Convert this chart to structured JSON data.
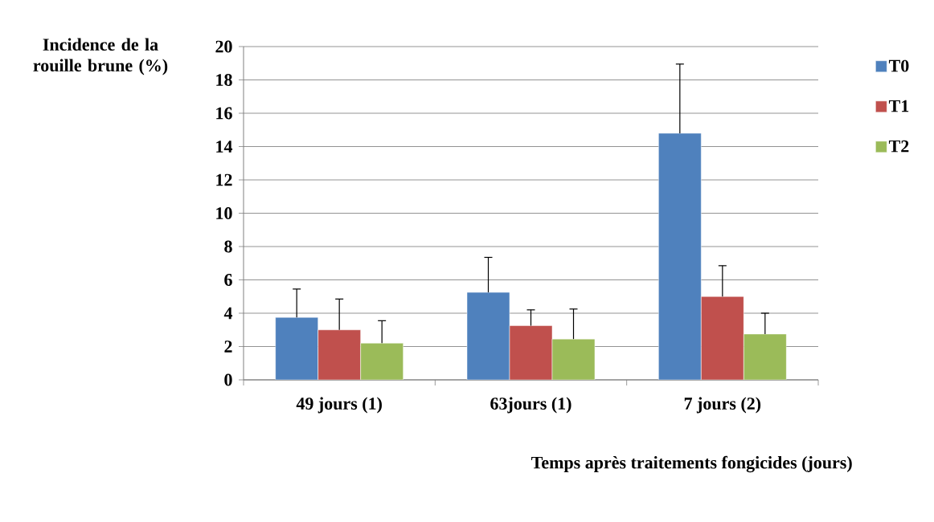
{
  "chart_data": {
    "type": "bar",
    "ylabel": "Incidence de la rouille brune (%)",
    "xlabel": "Temps après traitements fongicides (jours)",
    "categories": [
      "49 jours (1)",
      "63jours (1)",
      "7 jours (2)"
    ],
    "series": [
      {
        "name": "T0",
        "color": "#4f81bd",
        "values": [
          3.75,
          5.25,
          14.8
        ],
        "errors": [
          [
            3.75,
            5.45
          ],
          [
            5.25,
            7.35
          ],
          [
            14.8,
            18.95
          ]
        ]
      },
      {
        "name": "T1",
        "color": "#c0504d",
        "values": [
          3.0,
          3.25,
          5.0
        ],
        "errors": [
          [
            3.0,
            4.85
          ],
          [
            3.25,
            4.2
          ],
          [
            5.0,
            6.85
          ]
        ]
      },
      {
        "name": "T2",
        "color": "#9bbb59",
        "values": [
          2.2,
          2.45,
          2.75
        ],
        "errors": [
          [
            2.2,
            3.55
          ],
          [
            2.45,
            4.25
          ],
          [
            2.75,
            4.0
          ]
        ]
      }
    ],
    "ylim": [
      0,
      20
    ],
    "yticks": [
      0,
      2,
      4,
      6,
      8,
      10,
      12,
      14,
      16,
      18,
      20
    ],
    "grid": "y",
    "legend": "right"
  }
}
